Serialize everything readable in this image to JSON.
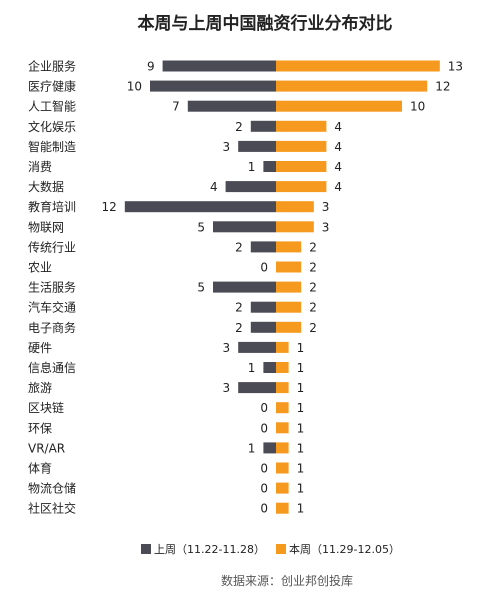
{
  "colors": {
    "last_week": "#4a4b55",
    "this_week": "#f59a1e",
    "text": "#222222",
    "source": "#555555"
  },
  "chart_data": {
    "type": "bar",
    "orientation": "horizontal-diverging",
    "title": "本周与上周中国融资行业分布对比",
    "categories": [
      "企业服务",
      "医疗健康",
      "人工智能",
      "文化娱乐",
      "智能制造",
      "消费",
      "大数据",
      "教育培训",
      "物联网",
      "传统行业",
      "农业",
      "生活服务",
      "汽车交通",
      "电子商务",
      "硬件",
      "信息通信",
      "旅游",
      "区块链",
      "环保",
      "VR/AR",
      "体育",
      "物流仓储",
      "社区社交"
    ],
    "series": [
      {
        "name": "上周（11.22-11.28）",
        "values": [
          9,
          10,
          7,
          2,
          3,
          1,
          4,
          12,
          5,
          2,
          0,
          5,
          2,
          2,
          3,
          1,
          3,
          0,
          0,
          1,
          0,
          0,
          0
        ]
      },
      {
        "name": "本周（11.29-12.05）",
        "values": [
          13,
          12,
          10,
          4,
          4,
          4,
          4,
          3,
          3,
          2,
          2,
          2,
          2,
          2,
          1,
          1,
          1,
          1,
          1,
          1,
          1,
          1,
          1
        ]
      }
    ],
    "xlim": [
      0,
      13
    ],
    "legend_position": "bottom",
    "grid": false,
    "source": "数据来源：创业邦创投库"
  }
}
